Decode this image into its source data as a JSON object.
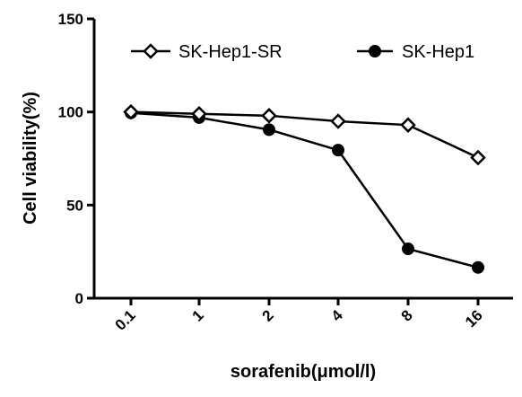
{
  "chart_data": {
    "type": "line",
    "title": "",
    "xlabel": "sorafenib(μmol/l)",
    "ylabel": "Cell viability(%)",
    "categories": [
      "0.1",
      "1",
      "2",
      "4",
      "8",
      "16"
    ],
    "yticks": [
      "0",
      "50",
      "100",
      "150"
    ],
    "ylim": [
      0,
      150
    ],
    "grid": false,
    "legend_position": "top",
    "series": [
      {
        "name": "SK-Hep1-SR",
        "marker": "open-diamond",
        "values": [
          100,
          99,
          98,
          95,
          93,
          75.5
        ]
      },
      {
        "name": "SK-Hep1",
        "marker": "filled-circle",
        "values": [
          99.5,
          97,
          90.5,
          79.5,
          26.5,
          16.5
        ]
      }
    ],
    "colors": {
      "line": "#000000",
      "background": "#ffffff"
    }
  }
}
